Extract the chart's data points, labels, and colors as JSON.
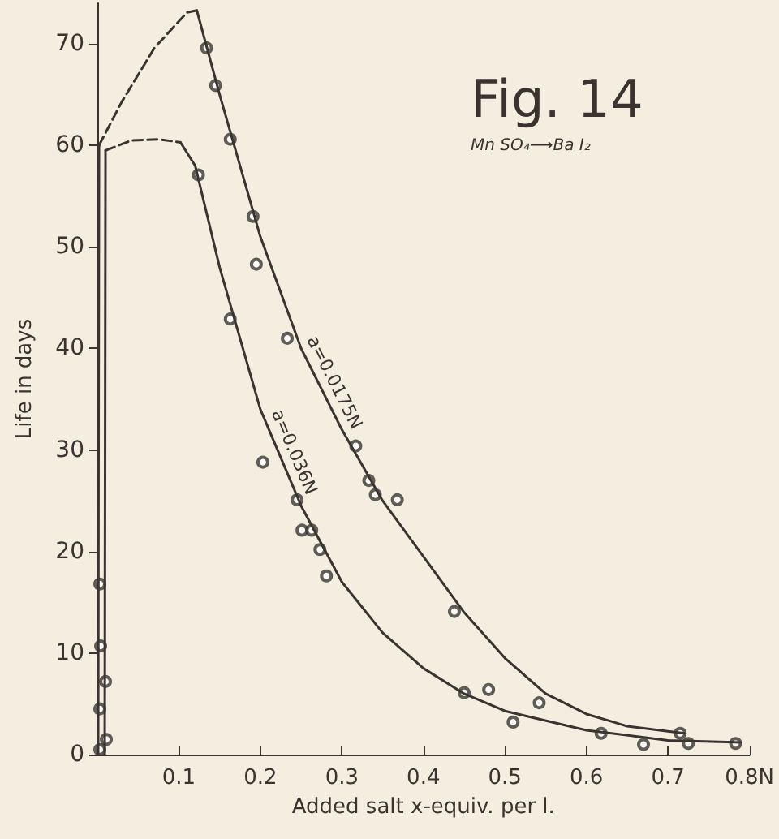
{
  "chart_data": {
    "type": "line",
    "title": "Fig. 14",
    "subtitle": "Mn SO₄⟶Ba I₂",
    "xlabel": "Added salt x-equiv. per l.",
    "ylabel": "Life in days",
    "xlim": [
      0,
      0.8
    ],
    "xticks": [
      0.1,
      0.2,
      0.3,
      0.4,
      0.5,
      0.6,
      0.7,
      {
        "value": 0.8,
        "label": "0.8N"
      }
    ],
    "ylim": [
      0,
      74
    ],
    "yticks": [
      0,
      10,
      20,
      30,
      40,
      50,
      60,
      70
    ],
    "grid": false,
    "series": [
      {
        "color": "#3a3430",
        "line_style": "solid",
        "marker": "none",
        "x": [
          0.001,
          0.002
        ],
        "values": [
          0,
          60
        ]
      },
      {
        "color": "#3a3430",
        "line_style": "dashed",
        "marker": "none",
        "x": [
          0.002,
          0.03,
          0.07,
          0.11,
          0.122
        ],
        "values": [
          60,
          64.3,
          69.6,
          73.1,
          73.3
        ]
      },
      {
        "name": "a=0.0175N",
        "color": "#3a3430",
        "line_style": "solid",
        "marker": "none",
        "x": [
          0.122,
          0.15,
          0.2,
          0.25,
          0.3,
          0.35,
          0.4,
          0.45,
          0.5,
          0.55,
          0.6,
          0.65,
          0.72
        ],
        "values": [
          73.3,
          65,
          51,
          40,
          32,
          25,
          19.5,
          14,
          9.5,
          6,
          4,
          2.8,
          2.1
        ]
      },
      {
        "type": "scatter",
        "color": "#3a3430",
        "marker": "circle",
        "x": [
          0.134,
          0.145,
          0.163,
          0.191,
          0.195,
          0.233,
          0.317,
          0.333,
          0.341,
          0.368,
          0.438,
          0.542,
          0.715
        ],
        "values": [
          69.6,
          65.9,
          60.6,
          53,
          48.3,
          41,
          30.4,
          27,
          25.6,
          25.1,
          14.1,
          5.1,
          2.1
        ]
      },
      {
        "color": "#3a3430",
        "line_style": "solid",
        "marker": "none",
        "x": [
          0.009,
          0.01
        ],
        "values": [
          0,
          59.5
        ]
      },
      {
        "color": "#3a3430",
        "line_style": "dashed",
        "marker": "none",
        "x": [
          0.01,
          0.042,
          0.076,
          0.102
        ],
        "values": [
          59.5,
          60.5,
          60.6,
          60.3
        ]
      },
      {
        "name": "a=0.036N",
        "color": "#3a3430",
        "line_style": "solid",
        "marker": "none",
        "x": [
          0.102,
          0.12,
          0.15,
          0.2,
          0.25,
          0.3,
          0.35,
          0.4,
          0.45,
          0.5,
          0.6,
          0.7,
          0.79
        ],
        "values": [
          60.3,
          58,
          48,
          34,
          24.5,
          17,
          12,
          8.5,
          6,
          4.3,
          2.4,
          1.4,
          1.2
        ]
      },
      {
        "type": "scatter",
        "color": "#3a3430",
        "marker": "circle",
        "x": [
          0.124,
          0.163,
          0.203,
          0.245,
          0.251,
          0.263,
          0.273,
          0.281,
          0.45,
          0.48,
          0.51,
          0.618,
          0.67,
          0.725,
          0.783
        ],
        "values": [
          57.1,
          42.9,
          28.8,
          25.1,
          22.1,
          22.1,
          20.2,
          17.6,
          6.1,
          6.4,
          3.2,
          2.1,
          1,
          1.1,
          1.1
        ]
      },
      {
        "type": "scatter",
        "color": "#3a3430",
        "marker": "circle",
        "x": [
          0.003,
          0.004,
          0.003,
          0.01,
          0.011,
          0.003
        ],
        "values": [
          16.8,
          10.7,
          4.5,
          7.2,
          1.5,
          0.5
        ]
      }
    ]
  }
}
